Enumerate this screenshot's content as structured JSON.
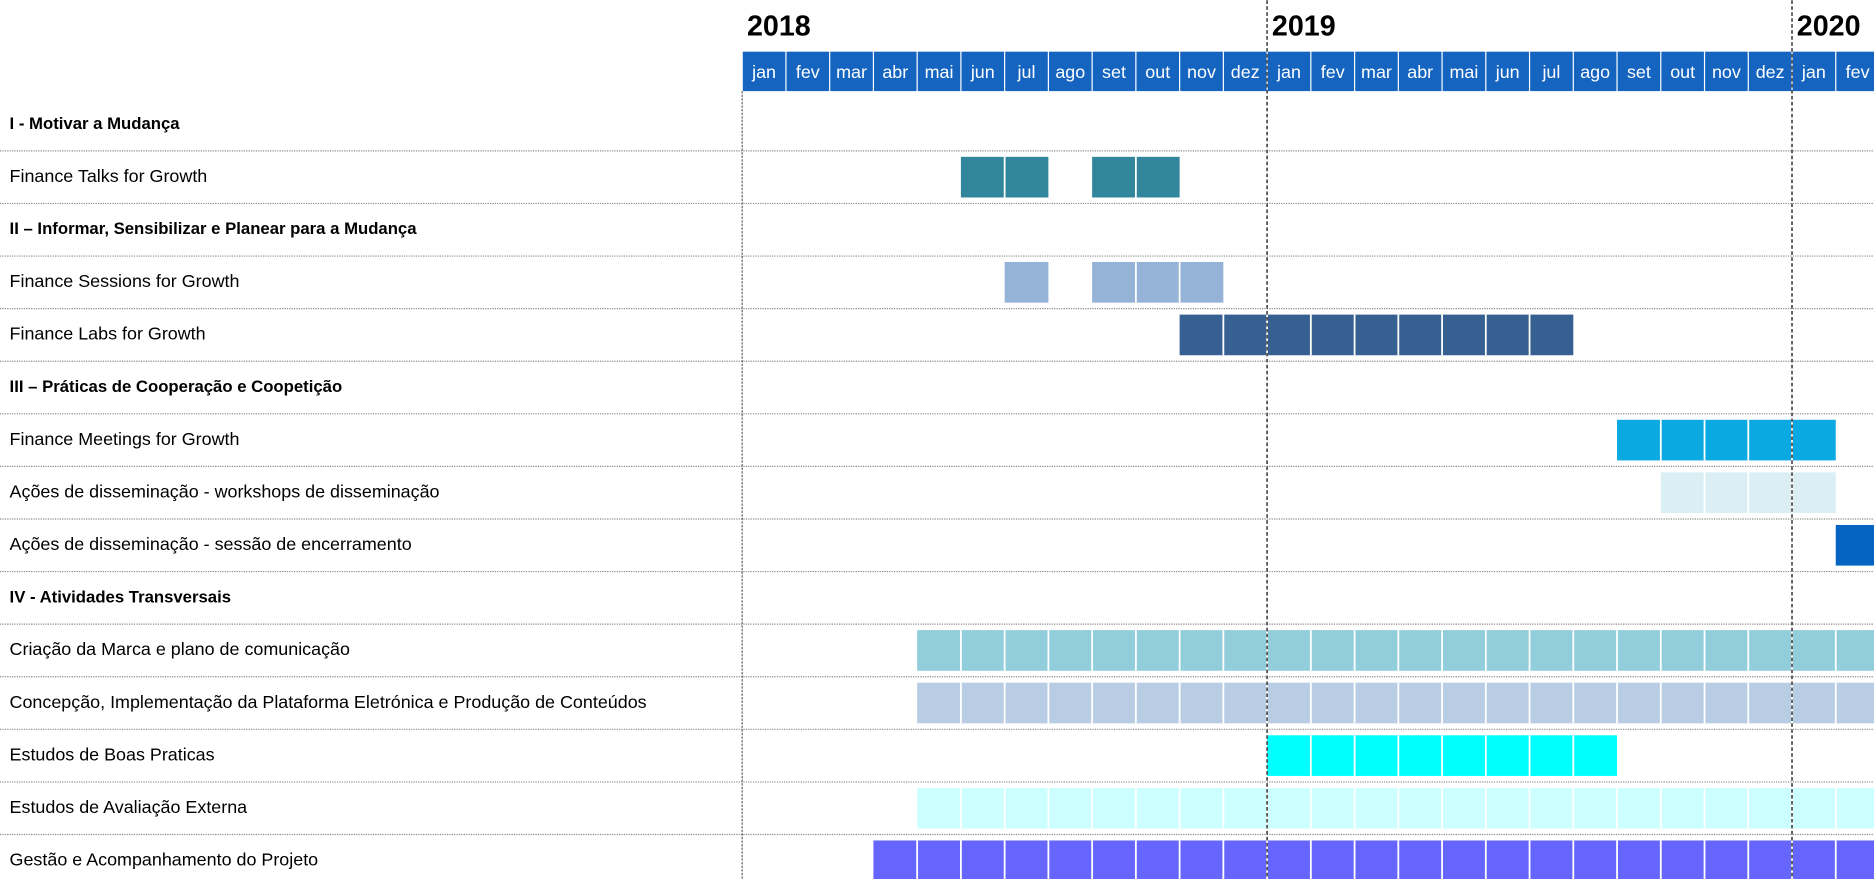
{
  "chart_data": {
    "type": "gantt",
    "years": [
      {
        "label": "2018",
        "months": [
          "jan",
          "fev",
          "mar",
          "abr",
          "mai",
          "jun",
          "jul",
          "ago",
          "set",
          "out",
          "nov",
          "dez"
        ]
      },
      {
        "label": "2019",
        "months": [
          "jan",
          "fev",
          "mar",
          "abr",
          "mai",
          "jun",
          "jul",
          "ago",
          "set",
          "out",
          "nov",
          "dez"
        ]
      },
      {
        "label": "2020",
        "months": [
          "jan",
          "fev"
        ]
      }
    ],
    "rows": [
      {
        "label": "I - Motivar a Mudança",
        "heading": true
      },
      {
        "label": "Finance Talks for Growth",
        "color": "#31869b",
        "bars": [
          [
            5,
            6
          ],
          [
            8,
            9
          ]
        ]
      },
      {
        "label": "II – Informar, Sensibilizar e Planear para a Mudança",
        "heading": true
      },
      {
        "label": "Finance Sessions for Growth",
        "color": "#95b3d7",
        "bars": [
          [
            6,
            6
          ],
          [
            8,
            10
          ]
        ]
      },
      {
        "label": "Finance Labs for Growth",
        "color": "#366092",
        "bars": [
          [
            10,
            18
          ]
        ]
      },
      {
        "label": "III – Práticas de Cooperação e Coopetição",
        "heading": true
      },
      {
        "label": "Finance Meetings for Growth",
        "color": "#0aa9e2",
        "bars": [
          [
            20,
            24
          ]
        ]
      },
      {
        "label": "Ações de disseminação - workshops de disseminação",
        "color": "#daeef3",
        "bars": [
          [
            21,
            24
          ]
        ]
      },
      {
        "label": "Ações de disseminação - sessão de encerramento",
        "color": "#0563c1",
        "bars": [
          [
            25,
            25
          ]
        ]
      },
      {
        "label": "IV - Atividades Transversais",
        "heading": true
      },
      {
        "label": "Criação da Marca e plano de comunicação",
        "color": "#92cddc",
        "bars": [
          [
            4,
            25
          ]
        ]
      },
      {
        "label": "Concepção, Implementação da Plataforma Eletrónica e Produção de Conteúdos",
        "color": "#b8cce4",
        "bars": [
          [
            4,
            25
          ]
        ]
      },
      {
        "label": "Estudos de Boas Praticas",
        "color": "#00ffff",
        "bars": [
          [
            12,
            19
          ]
        ]
      },
      {
        "label": "Estudos de Avaliação Externa",
        "color": "#ccffff",
        "bars": [
          [
            4,
            25
          ]
        ]
      },
      {
        "label": "Gestão e Acompanhamento do Projeto",
        "color": "#6666ff",
        "bars": [
          [
            3,
            25
          ]
        ]
      }
    ]
  }
}
